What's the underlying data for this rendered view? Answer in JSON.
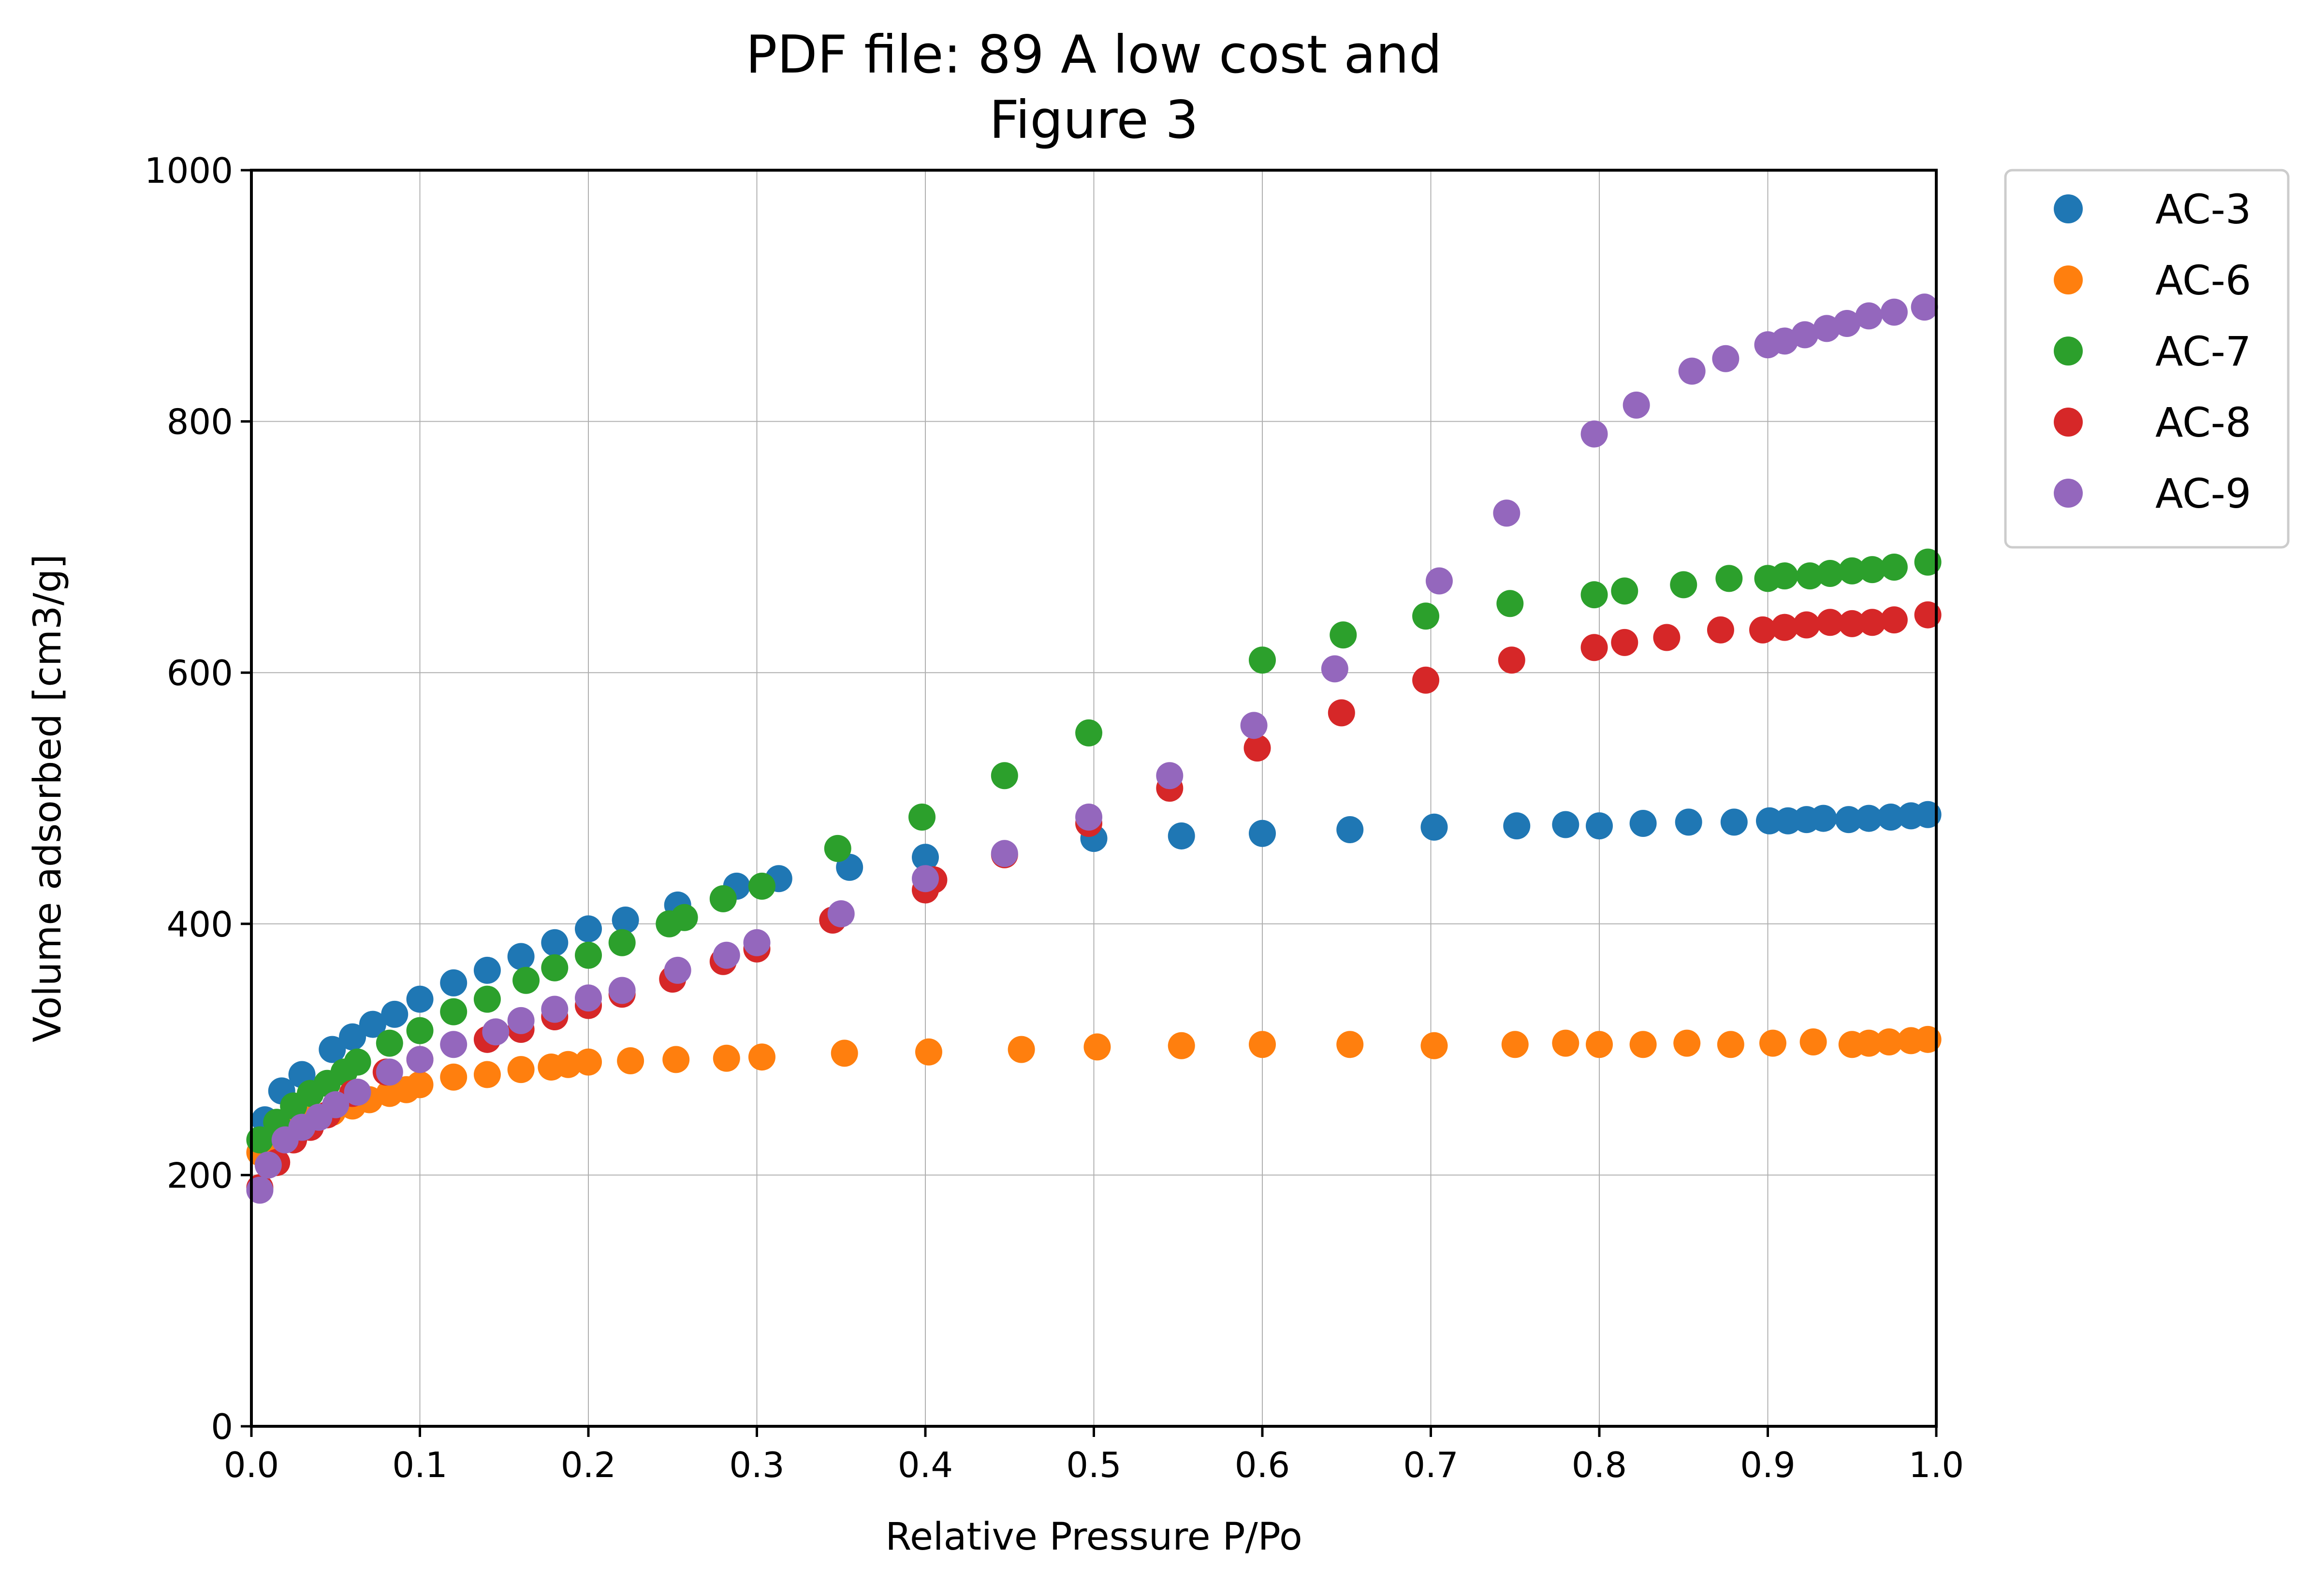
{
  "chart_data": {
    "type": "scatter",
    "title": "PDF file: 89 A low cost and\nFigure 3",
    "xlabel": "Relative Pressure P/Po",
    "ylabel": "Volume adsorbed [cm3/g]",
    "xlim": [
      0.0,
      1.0
    ],
    "ylim": [
      0,
      1000
    ],
    "xticks": [
      "0.0",
      "0.1",
      "0.2",
      "0.3",
      "0.4",
      "0.5",
      "0.6",
      "0.7",
      "0.8",
      "0.9",
      "1.0"
    ],
    "yticks": [
      "0",
      "200",
      "400",
      "600",
      "800",
      "1000"
    ],
    "grid": true,
    "legend_position": "outside top-right",
    "series": [
      {
        "name": "AC-3",
        "color": "#1f77b4",
        "x": [
          0.008,
          0.018,
          0.03,
          0.048,
          0.06,
          0.072,
          0.085,
          0.1,
          0.12,
          0.14,
          0.16,
          0.18,
          0.2,
          0.222,
          0.253,
          0.288,
          0.313,
          0.355,
          0.4,
          0.5,
          0.552,
          0.6,
          0.652,
          0.702,
          0.751,
          0.78,
          0.8,
          0.826,
          0.853,
          0.88,
          0.901,
          0.912,
          0.923,
          0.933,
          0.948,
          0.96,
          0.973,
          0.985,
          0.995
        ],
        "y": [
          244,
          267,
          280,
          300,
          310,
          320,
          328,
          340,
          353,
          363,
          374,
          385,
          396,
          403,
          415,
          430,
          436,
          445,
          453,
          468,
          470,
          472,
          475,
          477,
          478,
          479,
          478,
          480,
          481,
          481,
          482,
          482,
          483,
          484,
          483,
          484,
          485,
          486,
          487
        ]
      },
      {
        "name": "AC-6",
        "color": "#ff7f0e",
        "x": [
          0.005,
          0.015,
          0.025,
          0.035,
          0.048,
          0.06,
          0.07,
          0.082,
          0.092,
          0.1,
          0.12,
          0.14,
          0.16,
          0.178,
          0.188,
          0.2,
          0.225,
          0.252,
          0.282,
          0.303,
          0.352,
          0.402,
          0.457,
          0.502,
          0.552,
          0.6,
          0.652,
          0.702,
          0.75,
          0.78,
          0.8,
          0.826,
          0.852,
          0.878,
          0.903,
          0.927,
          0.95,
          0.96,
          0.972,
          0.985,
          0.995
        ],
        "y": [
          218,
          230,
          238,
          244,
          250,
          255,
          260,
          265,
          268,
          272,
          278,
          280,
          284,
          286,
          288,
          290,
          291,
          292,
          293,
          294,
          297,
          298,
          300,
          302,
          303,
          304,
          304,
          303,
          304,
          305,
          304,
          304,
          305,
          304,
          305,
          306,
          304,
          305,
          306,
          307,
          308
        ]
      },
      {
        "name": "AC-7",
        "color": "#2ca02c",
        "x": [
          0.005,
          0.015,
          0.025,
          0.035,
          0.045,
          0.055,
          0.063,
          0.082,
          0.1,
          0.12,
          0.14,
          0.163,
          0.18,
          0.2,
          0.22,
          0.248,
          0.257,
          0.28,
          0.303,
          0.348,
          0.398,
          0.447,
          0.497,
          0.6,
          0.648,
          0.697,
          0.747,
          0.797,
          0.815,
          0.85,
          0.877,
          0.9,
          0.91,
          0.925,
          0.937,
          0.95,
          0.962,
          0.975,
          0.995
        ],
        "y": [
          228,
          242,
          255,
          265,
          273,
          282,
          290,
          305,
          315,
          330,
          340,
          355,
          365,
          375,
          385,
          400,
          405,
          420,
          430,
          460,
          485,
          518,
          552,
          610,
          630,
          645,
          655,
          662,
          665,
          670,
          675,
          675,
          677,
          677,
          679,
          681,
          682,
          684,
          688
        ]
      },
      {
        "name": "AC-8",
        "color": "#d62728",
        "x": [
          0.005,
          0.015,
          0.025,
          0.035,
          0.045,
          0.06,
          0.08,
          0.1,
          0.14,
          0.16,
          0.18,
          0.2,
          0.22,
          0.25,
          0.28,
          0.3,
          0.345,
          0.4,
          0.405,
          0.447,
          0.497,
          0.545,
          0.597,
          0.647,
          0.697,
          0.748,
          0.797,
          0.815,
          0.84,
          0.872,
          0.897,
          0.91,
          0.923,
          0.937,
          0.95,
          0.962,
          0.975,
          0.995
        ],
        "y": [
          190,
          210,
          228,
          238,
          248,
          265,
          282,
          292,
          308,
          316,
          326,
          335,
          344,
          356,
          370,
          380,
          403,
          427,
          435,
          455,
          480,
          508,
          540,
          568,
          594,
          610,
          620,
          624,
          628,
          634,
          634,
          636,
          638,
          640,
          639,
          640,
          642,
          646
        ]
      },
      {
        "name": "AC-9",
        "color": "#9467bd",
        "x": [
          0.005,
          0.01,
          0.02,
          0.03,
          0.04,
          0.05,
          0.063,
          0.082,
          0.1,
          0.12,
          0.145,
          0.16,
          0.18,
          0.2,
          0.22,
          0.253,
          0.282,
          0.3,
          0.35,
          0.4,
          0.447,
          0.497,
          0.545,
          0.595,
          0.643,
          0.705,
          0.745,
          0.797,
          0.822,
          0.855,
          0.875,
          0.9,
          0.91,
          0.922,
          0.935,
          0.947,
          0.96,
          0.975,
          0.993
        ],
        "y": [
          188,
          208,
          228,
          238,
          246,
          256,
          266,
          282,
          292,
          304,
          314,
          323,
          332,
          341,
          347,
          363,
          375,
          385,
          408,
          436,
          456,
          485,
          518,
          558,
          603,
          673,
          727,
          790,
          813,
          840,
          850,
          861,
          864,
          869,
          874,
          878,
          884,
          887,
          891
        ]
      }
    ]
  }
}
